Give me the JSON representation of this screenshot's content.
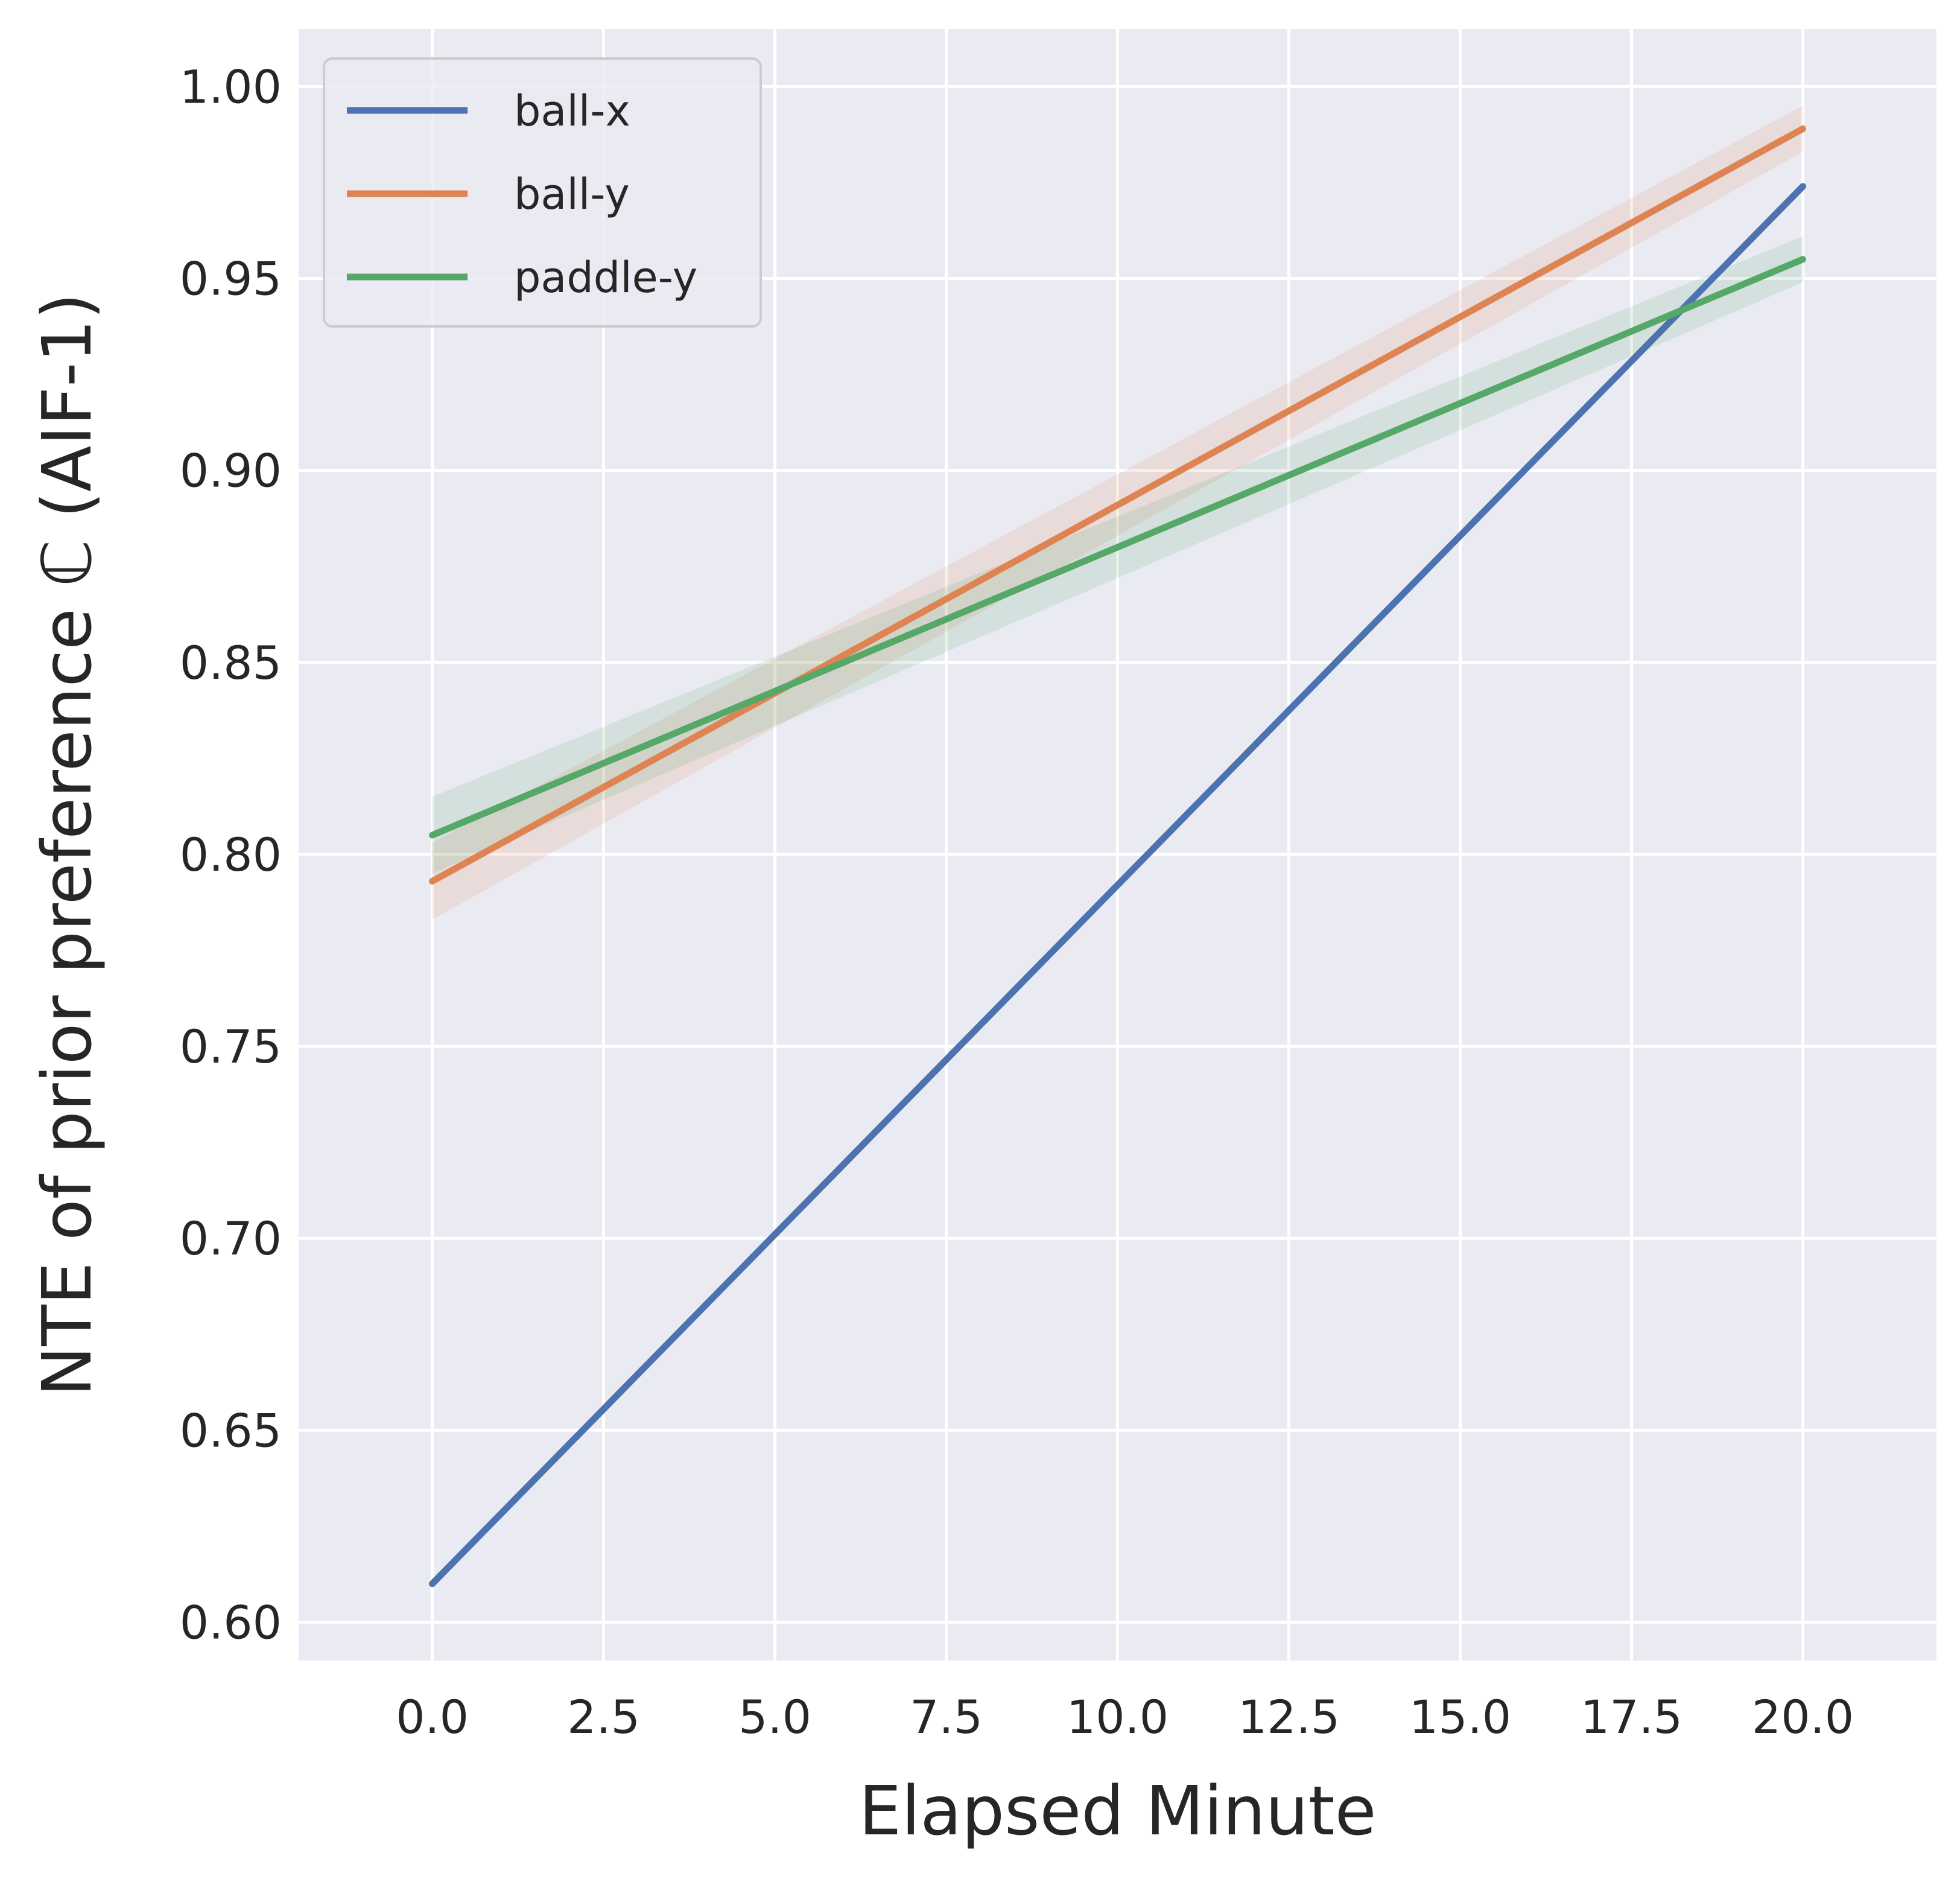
{
  "chart_data": {
    "type": "line",
    "xlabel": "Elapsed Minute",
    "ylabel": "NTE of prior preference ℂ (AIF-1)",
    "xlim": [
      -1.95,
      21.95
    ],
    "ylim": [
      0.59,
      1.015
    ],
    "xticks": [
      0,
      2.5,
      5,
      7.5,
      10,
      12.5,
      15,
      17.5,
      20
    ],
    "xtick_labels": [
      "0.0",
      "2.5",
      "5.0",
      "7.5",
      "10.0",
      "12.5",
      "15.0",
      "17.5",
      "20.0"
    ],
    "yticks": [
      0.6,
      0.65,
      0.7,
      0.75,
      0.8,
      0.85,
      0.9,
      0.95,
      1.0
    ],
    "ytick_labels": [
      "0.60",
      "0.65",
      "0.70",
      "0.75",
      "0.80",
      "0.85",
      "0.90",
      "0.95",
      "1.00"
    ],
    "grid": true,
    "legend_position": "top-left",
    "series": [
      {
        "name": "ball-x",
        "color": "#4c72b0",
        "x": [
          0,
          20
        ],
        "y": [
          0.61,
          0.974
        ],
        "ci": [
          0.0,
          0.0
        ]
      },
      {
        "name": "ball-y",
        "color": "#dd8452",
        "x": [
          0,
          20
        ],
        "y": [
          0.793,
          0.989
        ],
        "ci": [
          0.01,
          0.006
        ]
      },
      {
        "name": "paddle-y",
        "color": "#55a868",
        "x": [
          0,
          20
        ],
        "y": [
          0.805,
          0.955
        ],
        "ci": [
          0.01,
          0.006
        ]
      }
    ]
  }
}
